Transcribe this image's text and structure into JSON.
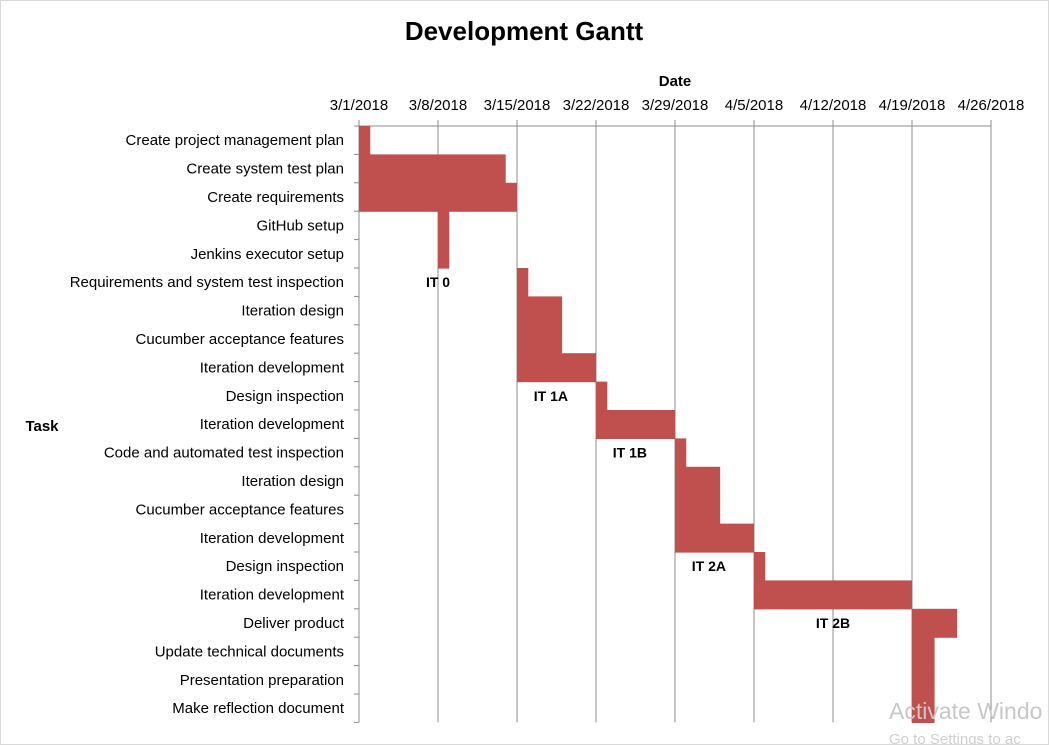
{
  "chart_data": {
    "type": "bar",
    "subtype": "gantt",
    "title": "Development Gantt",
    "xlabel": "Date",
    "ylabel": "Task",
    "x_axis_position": "top",
    "xlim": [
      "2018-03-01",
      "2018-04-26"
    ],
    "x_ticks": [
      "3/1/2018",
      "3/8/2018",
      "3/15/2018",
      "3/22/2018",
      "3/29/2018",
      "4/5/2018",
      "4/12/2018",
      "4/19/2018",
      "4/26/2018"
    ],
    "grid": true,
    "bar_color": "#c0504d",
    "tasks": [
      {
        "name": "Create project management plan",
        "start": "2018-03-01",
        "end": "2018-03-02"
      },
      {
        "name": "Create system test plan",
        "start": "2018-03-01",
        "end": "2018-03-14"
      },
      {
        "name": "Create requirements",
        "start": "2018-03-01",
        "end": "2018-03-15"
      },
      {
        "name": "GitHub setup",
        "start": "2018-03-08",
        "end": "2018-03-09"
      },
      {
        "name": "Jenkins executor setup",
        "start": "2018-03-08",
        "end": "2018-03-09"
      },
      {
        "name": "Requirements and system test inspection",
        "start": "2018-03-15",
        "end": "2018-03-16"
      },
      {
        "name": "Iteration design",
        "start": "2018-03-15",
        "end": "2018-03-19"
      },
      {
        "name": "Cucumber acceptance features",
        "start": "2018-03-15",
        "end": "2018-03-19"
      },
      {
        "name": "Iteration development",
        "start": "2018-03-15",
        "end": "2018-03-22"
      },
      {
        "name": "Design inspection",
        "start": "2018-03-22",
        "end": "2018-03-23"
      },
      {
        "name": "Iteration development",
        "start": "2018-03-22",
        "end": "2018-03-29"
      },
      {
        "name": "Code and automated test inspection",
        "start": "2018-03-29",
        "end": "2018-03-30"
      },
      {
        "name": "Iteration design",
        "start": "2018-03-29",
        "end": "2018-04-02"
      },
      {
        "name": "Cucumber acceptance features",
        "start": "2018-03-29",
        "end": "2018-04-02"
      },
      {
        "name": "Iteration development",
        "start": "2018-03-29",
        "end": "2018-04-05"
      },
      {
        "name": "Design inspection",
        "start": "2018-04-05",
        "end": "2018-04-06"
      },
      {
        "name": "Iteration development",
        "start": "2018-04-05",
        "end": "2018-04-19"
      },
      {
        "name": "Deliver product",
        "start": "2018-04-19",
        "end": "2018-04-23"
      },
      {
        "name": "Update technical documents",
        "start": "2018-04-19",
        "end": "2018-04-21"
      },
      {
        "name": "Presentation preparation",
        "start": "2018-04-19",
        "end": "2018-04-21"
      },
      {
        "name": "Make reflection document",
        "start": "2018-04-19",
        "end": "2018-04-21"
      }
    ],
    "annotations": [
      {
        "text": "IT 0",
        "date": "2018-03-08",
        "task_index": 5
      },
      {
        "text": "IT 1A",
        "date": "2018-03-18",
        "task_index": 9
      },
      {
        "text": "IT 1B",
        "date": "2018-03-25",
        "task_index": 11
      },
      {
        "text": "IT 2A",
        "date": "2018-04-01",
        "task_index": 15
      },
      {
        "text": "IT 2B",
        "date": "2018-04-12",
        "task_index": 17
      }
    ]
  },
  "watermark": {
    "line1": "Activate Windo",
    "line2": "Go to Settings to ac"
  }
}
